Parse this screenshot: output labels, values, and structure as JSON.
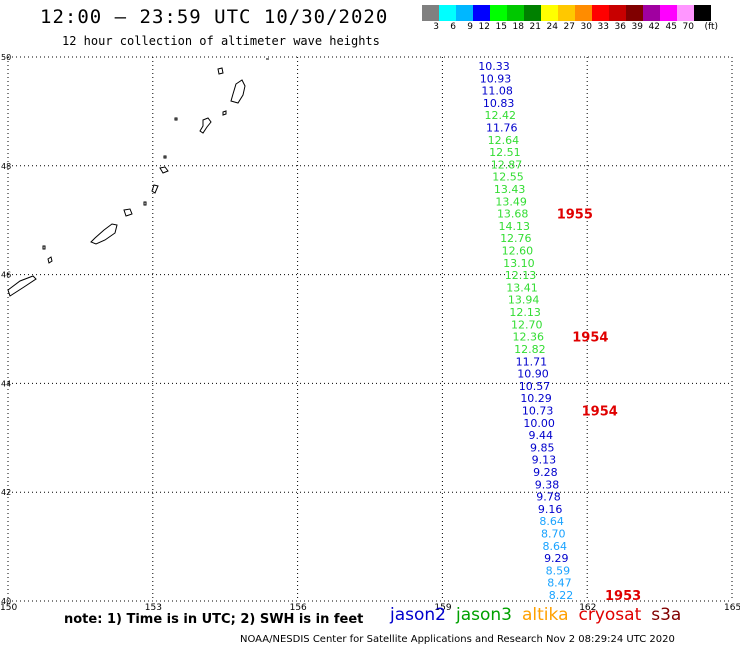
{
  "header": {
    "title": "12:00 – 23:59 UTC 10/30/2020",
    "subtitle": "12 hour collection of altimeter wave heights"
  },
  "colorbar": {
    "colors": [
      "#808080",
      "#00ffff",
      "#00b7ff",
      "#0000ff",
      "#00ff00",
      "#00c800",
      "#008000",
      "#ffff00",
      "#ffc800",
      "#ff8c00",
      "#ff0000",
      "#c80000",
      "#800000",
      "#a000a0",
      "#ff00ff",
      "#ff96ff",
      "#000000"
    ],
    "labels": [
      "3",
      "6",
      "9",
      "12",
      "15",
      "18",
      "21",
      "24",
      "27",
      "30",
      "33",
      "36",
      "39",
      "42",
      "45",
      "70",
      "(ft)"
    ]
  },
  "map": {
    "lat_labels": [
      "50",
      "48",
      "46",
      "44",
      "42",
      "40"
    ],
    "lon_labels": [
      "150",
      "153",
      "156",
      "159",
      "162",
      "165"
    ],
    "lat_range": [
      40,
      50
    ],
    "lon_range": [
      150,
      165
    ]
  },
  "observations": [
    {
      "v": "10.33",
      "c": "#0000cc"
    },
    {
      "v": "10.93",
      "c": "#0000cc"
    },
    {
      "v": "11.08",
      "c": "#0000cc"
    },
    {
      "v": "10.83",
      "c": "#0000cc"
    },
    {
      "v": "12.42",
      "c": "#33dd33"
    },
    {
      "v": "11.76",
      "c": "#0000cc"
    },
    {
      "v": "12.64",
      "c": "#33dd33"
    },
    {
      "v": "12.51",
      "c": "#33dd33"
    },
    {
      "v": "12.87",
      "c": "#33dd33"
    },
    {
      "v": "12.55",
      "c": "#33dd33"
    },
    {
      "v": "13.43",
      "c": "#33dd33"
    },
    {
      "v": "13.49",
      "c": "#33dd33"
    },
    {
      "v": "13.68",
      "c": "#33dd33"
    },
    {
      "v": "14.13",
      "c": "#33dd33"
    },
    {
      "v": "12.76",
      "c": "#33dd33"
    },
    {
      "v": "12.60",
      "c": "#33dd33"
    },
    {
      "v": "13.10",
      "c": "#33dd33"
    },
    {
      "v": "12.13",
      "c": "#33dd33"
    },
    {
      "v": "13.41",
      "c": "#33dd33"
    },
    {
      "v": "13.94",
      "c": "#33dd33"
    },
    {
      "v": "12.13",
      "c": "#33dd33"
    },
    {
      "v": "12.70",
      "c": "#33dd33"
    },
    {
      "v": "12.36",
      "c": "#33dd33"
    },
    {
      "v": "12.82",
      "c": "#33dd33"
    },
    {
      "v": "11.71",
      "c": "#0000cc"
    },
    {
      "v": "10.90",
      "c": "#0000cc"
    },
    {
      "v": "10.57",
      "c": "#0000cc"
    },
    {
      "v": "10.29",
      "c": "#0000cc"
    },
    {
      "v": "10.73",
      "c": "#0000cc"
    },
    {
      "v": "10.00",
      "c": "#0000cc"
    },
    {
      "v": "9.44",
      "c": "#0000cc"
    },
    {
      "v": "9.85",
      "c": "#0000cc"
    },
    {
      "v": "9.13",
      "c": "#0000cc"
    },
    {
      "v": "9.28",
      "c": "#0000cc"
    },
    {
      "v": "9.38",
      "c": "#0000cc"
    },
    {
      "v": "9.78",
      "c": "#0000cc"
    },
    {
      "v": "9.16",
      "c": "#0000cc"
    },
    {
      "v": "8.64",
      "c": "#1aa3ff"
    },
    {
      "v": "8.70",
      "c": "#1aa3ff"
    },
    {
      "v": "8.64",
      "c": "#1aa3ff"
    },
    {
      "v": "9.29",
      "c": "#0000cc"
    },
    {
      "v": "8.59",
      "c": "#1aa3ff"
    },
    {
      "v": "8.47",
      "c": "#1aa3ff"
    },
    {
      "v": "8.22",
      "c": "#1aa3ff"
    }
  ],
  "pass_times": [
    "1955",
    "1954",
    "1954",
    "1953"
  ],
  "footer": {
    "note": "note: 1) Time is in UTC; 2) SWH is in feet",
    "legend": [
      {
        "label": "jason2",
        "color": "#0000cc"
      },
      {
        "label": "jason3",
        "color": "#00a000"
      },
      {
        "label": "altika",
        "color": "#ffa000"
      },
      {
        "label": "cryosat",
        "color": "#e00000"
      },
      {
        "label": "s3a",
        "color": "#800000"
      }
    ],
    "credit": "NOAA/NESDIS Center for Satellite Applications and Research    Nov  2 08:29:24 UTC 2020"
  }
}
